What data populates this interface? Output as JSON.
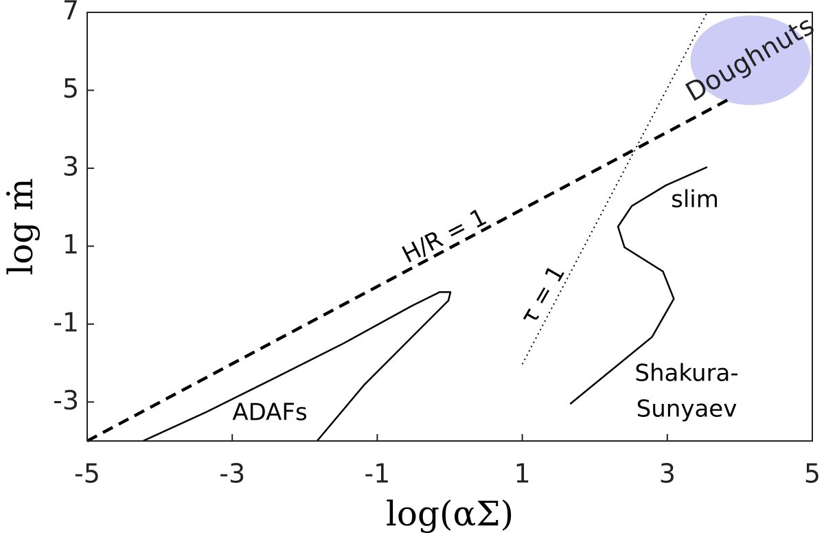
{
  "chart_data": {
    "type": "line",
    "xlabel": "log(αΣ)",
    "ylabel": "log ṁ",
    "xlim": [
      -5,
      5
    ],
    "ylim": [
      -4,
      7
    ],
    "xticks": [
      -5,
      -3,
      -1,
      1,
      3,
      5
    ],
    "yticks": [
      -3,
      -1,
      1,
      3,
      5,
      7
    ],
    "series": [
      {
        "color": "#000000",
        "dash": "dashed",
        "x": [
          -5,
          3.84
        ],
        "values": [
          -4,
          4.76
        ]
      },
      {
        "color": "#000000",
        "dash": "dotted",
        "x": [
          1.0,
          3.55
        ],
        "values": [
          -2.03,
          7
        ]
      },
      {
        "color": "#000000",
        "dash": "solid",
        "x": [
          -4.23,
          -3.36,
          -2.41,
          -1.47,
          -0.52,
          -0.14,
          0.01,
          -0.02,
          -0.52,
          -1.18,
          -1.83
        ],
        "values": [
          -4,
          -3.26,
          -2.38,
          -1.5,
          -0.53,
          -0.18,
          -0.18,
          -0.4,
          -1.33,
          -2.56,
          -4
        ]
      },
      {
        "color": "#000000",
        "dash": "solid",
        "x": [
          1.66,
          2.79,
          3.09,
          2.94,
          2.41,
          2.32,
          2.51,
          2.98,
          3.55
        ],
        "values": [
          -3.05,
          -1.33,
          -0.35,
          0.35,
          0.97,
          1.5,
          2.03,
          2.56,
          3.03
        ]
      }
    ],
    "regions": [
      {
        "label": "Doughnuts",
        "color": "#ccccf7",
        "center": [
          4.15,
          5.77
        ],
        "radii": [
          0.83,
          1.15
        ]
      }
    ],
    "annotations": [
      "H/R = 1",
      "τ = 1",
      "slim",
      "Shakura-",
      "Sunyaev",
      "ADAFs"
    ]
  }
}
